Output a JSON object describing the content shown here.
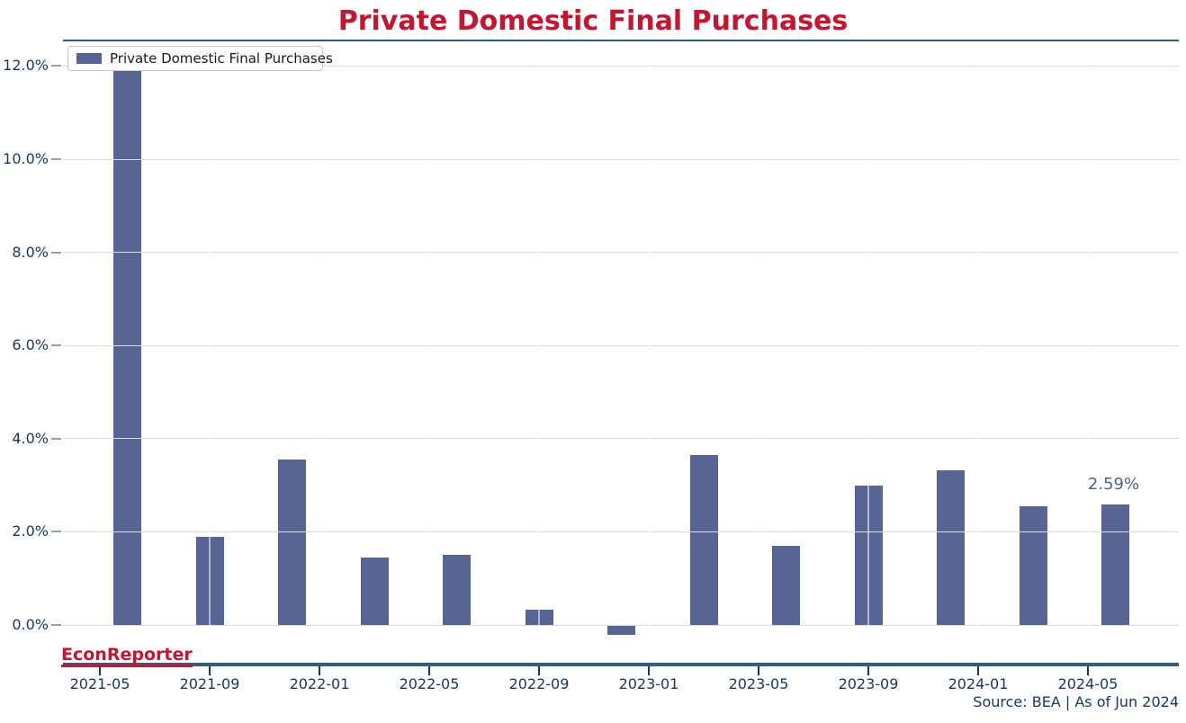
{
  "page": {
    "title": "Private Domestic Final Purchases",
    "watermark": "EconReporter",
    "source_note": "Source: BEA | As of Jun 2024"
  },
  "legend": {
    "label": "Private Domestic Final Purchases",
    "position": "upper left"
  },
  "colors": {
    "title_red": "#c8142f",
    "bar_fill": "#566593",
    "axis_text": "#17375e",
    "spine_blue": "#2c5c88",
    "gridline": "#dcdcdc",
    "annotation_text": "#50618c"
  },
  "chart_data": {
    "type": "bar",
    "title": "Private Domestic Final Purchases",
    "series_name": "Private Domestic Final Purchases",
    "x": [
      "2021-06",
      "2021-09",
      "2021-12",
      "2022-03",
      "2022-06",
      "2022-09",
      "2022-12",
      "2023-03",
      "2023-06",
      "2023-09",
      "2023-12",
      "2024-03",
      "2024-06"
    ],
    "values": [
      11.9,
      1.9,
      3.55,
      1.45,
      1.5,
      0.33,
      -0.21,
      3.65,
      1.7,
      3.0,
      3.33,
      2.55,
      2.59
    ],
    "unit": "%",
    "x_tick_labels": [
      "2021-05",
      "2021-09",
      "2022-01",
      "2022-05",
      "2022-09",
      "2023-01",
      "2023-05",
      "2023-09",
      "2024-01",
      "2024-05"
    ],
    "y_ticks": {
      "labels": [
        "0.0%",
        "2.0%",
        "4.0%",
        "6.0%",
        "8.0%",
        "10.0%",
        "12.0%"
      ],
      "values": [
        0,
        2,
        4,
        6,
        8,
        10,
        12
      ]
    },
    "ylim": [
      -0.81,
      12.57
    ],
    "grid": true,
    "legend_position": "upper left",
    "last_value_label": "2.59%"
  }
}
